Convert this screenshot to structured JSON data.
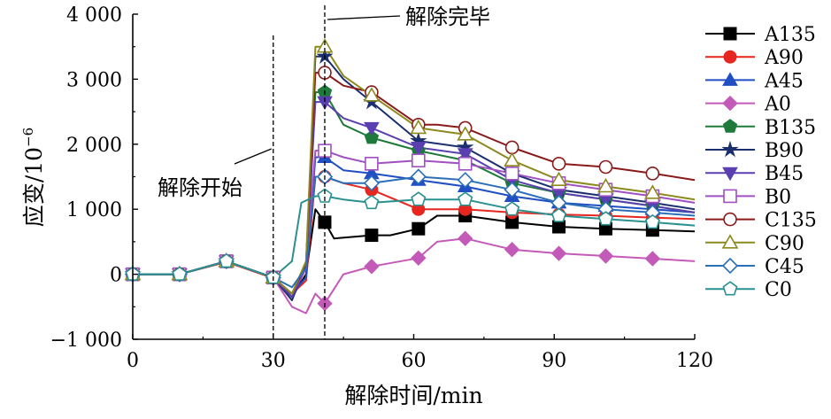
{
  "chart_data": {
    "type": "line",
    "title": "",
    "xlabel": "解除时间/min",
    "ylabel": "应变/10",
    "ylabel_sup": "−6",
    "xlim": [
      0,
      120
    ],
    "ylim": [
      -1000,
      4000
    ],
    "xticks": [
      {
        "v": 0,
        "label": "0"
      },
      {
        "v": 30,
        "label": "30"
      },
      {
        "v": 60,
        "label": "60"
      },
      {
        "v": 90,
        "label": "90"
      },
      {
        "v": 120,
        "label": "120"
      }
    ],
    "yticks": [
      {
        "v": -1000,
        "label": "−1 000"
      },
      {
        "v": 0,
        "label": "0"
      },
      {
        "v": 1000,
        "label": "1 000"
      },
      {
        "v": 2000,
        "label": "2 000"
      },
      {
        "v": 3000,
        "label": "3 000"
      },
      {
        "v": 4000,
        "label": "4 000"
      }
    ],
    "grid": false,
    "legend_position": "right",
    "annotations": [
      {
        "text": "解除开始",
        "x": 30
      },
      {
        "text": "解除完毕",
        "x": 41
      }
    ],
    "series": [
      {
        "name": "A135",
        "color": "#000000",
        "marker": "square",
        "x": [
          0,
          10,
          20,
          30,
          34,
          37,
          39,
          41,
          43,
          51,
          55,
          61,
          65,
          71,
          81,
          91,
          101,
          111,
          120
        ],
        "y": [
          0,
          0,
          200,
          -50,
          -350,
          0,
          1000,
          800,
          550,
          600,
          600,
          700,
          900,
          900,
          800,
          730,
          700,
          680,
          660
        ]
      },
      {
        "name": "A90",
        "color": "#e6261f",
        "marker": "circle",
        "x": [
          0,
          10,
          20,
          30,
          34,
          37,
          39,
          41,
          45,
          51,
          61,
          71,
          81,
          91,
          101,
          111,
          120
        ],
        "y": [
          0,
          0,
          190,
          -60,
          -300,
          -100,
          1500,
          1500,
          1400,
          1300,
          1000,
          1000,
          950,
          920,
          900,
          870,
          850
        ]
      },
      {
        "name": "A45",
        "color": "#1f4fc2",
        "marker": "triangle",
        "x": [
          0,
          10,
          20,
          30,
          34,
          37,
          39,
          41,
          45,
          51,
          61,
          71,
          81,
          91,
          101,
          111,
          120
        ],
        "y": [
          0,
          0,
          200,
          -50,
          -300,
          -50,
          1800,
          1800,
          1600,
          1550,
          1450,
          1350,
          1200,
          1100,
          1050,
          1000,
          950
        ]
      },
      {
        "name": "A0",
        "color": "#c45ab8",
        "marker": "diamond",
        "x": [
          0,
          10,
          20,
          30,
          34,
          37,
          39,
          41,
          45,
          51,
          61,
          65,
          71,
          81,
          91,
          101,
          111,
          120
        ],
        "y": [
          0,
          0,
          200,
          -50,
          -500,
          -600,
          -300,
          -450,
          0,
          120,
          250,
          500,
          550,
          380,
          320,
          280,
          240,
          200
        ]
      },
      {
        "name": "B135",
        "color": "#1e7a3a",
        "marker": "pentagon",
        "x": [
          0,
          10,
          20,
          30,
          34,
          37,
          39,
          41,
          45,
          51,
          61,
          71,
          81,
          91,
          101,
          111,
          120
        ],
        "y": [
          0,
          0,
          200,
          -50,
          -350,
          100,
          2800,
          2800,
          2300,
          2100,
          1900,
          1750,
          1400,
          1250,
          1150,
          1050,
          950
        ]
      },
      {
        "name": "B90",
        "color": "#1b2f6e",
        "marker": "star",
        "x": [
          0,
          10,
          20,
          30,
          34,
          37,
          39,
          41,
          45,
          51,
          61,
          71,
          81,
          91,
          101,
          111,
          120
        ],
        "y": [
          0,
          0,
          200,
          -50,
          -400,
          150,
          3350,
          3350,
          3000,
          2650,
          2050,
          1950,
          1550,
          1300,
          1200,
          1100,
          1000
        ]
      },
      {
        "name": "B45",
        "color": "#5a3fb0",
        "marker": "triangle-down",
        "x": [
          0,
          10,
          20,
          30,
          34,
          37,
          39,
          41,
          45,
          51,
          61,
          71,
          81,
          91,
          101,
          111,
          120
        ],
        "y": [
          0,
          0,
          200,
          -50,
          -350,
          100,
          2650,
          2650,
          2400,
          2250,
          1950,
          1850,
          1450,
          1250,
          1150,
          1050,
          950
        ]
      },
      {
        "name": "B0",
        "color": "#a050c0",
        "marker": "square-open",
        "x": [
          0,
          10,
          20,
          30,
          34,
          37,
          39,
          41,
          45,
          51,
          61,
          71,
          81,
          91,
          101,
          111,
          120
        ],
        "y": [
          0,
          0,
          200,
          -50,
          -300,
          100,
          1900,
          1900,
          1800,
          1700,
          1750,
          1700,
          1550,
          1400,
          1300,
          1200,
          1100
        ]
      },
      {
        "name": "C135",
        "color": "#8a1a1a",
        "marker": "circle-open",
        "x": [
          0,
          10,
          20,
          30,
          34,
          37,
          39,
          41,
          45,
          51,
          61,
          65,
          71,
          81,
          91,
          101,
          111,
          120
        ],
        "y": [
          0,
          0,
          200,
          -50,
          -300,
          150,
          3100,
          3100,
          2900,
          2800,
          2300,
          2300,
          2250,
          1950,
          1700,
          1650,
          1550,
          1450
        ]
      },
      {
        "name": "C90",
        "color": "#8c8a1e",
        "marker": "triangle-open",
        "x": [
          0,
          10,
          20,
          30,
          34,
          37,
          39,
          41,
          45,
          51,
          61,
          71,
          81,
          91,
          101,
          111,
          120
        ],
        "y": [
          0,
          0,
          200,
          -50,
          -300,
          200,
          3500,
          3500,
          3050,
          2750,
          2250,
          2150,
          1750,
          1450,
          1350,
          1250,
          1150
        ]
      },
      {
        "name": "C45",
        "color": "#2a6fb8",
        "marker": "diamond-open",
        "x": [
          0,
          10,
          20,
          30,
          34,
          37,
          39,
          41,
          45,
          51,
          61,
          71,
          81,
          91,
          101,
          111,
          120
        ],
        "y": [
          0,
          0,
          200,
          -50,
          -200,
          100,
          1500,
          1500,
          1400,
          1400,
          1500,
          1450,
          1300,
          1100,
          1000,
          950,
          900
        ]
      },
      {
        "name": "C0",
        "color": "#2a9090",
        "marker": "pentagon-open",
        "x": [
          0,
          10,
          20,
          30,
          34,
          36,
          39,
          41,
          45,
          51,
          61,
          71,
          81,
          91,
          101,
          111,
          120
        ],
        "y": [
          0,
          0,
          200,
          -50,
          200,
          1100,
          1200,
          1200,
          1150,
          1100,
          1150,
          1150,
          1000,
          900,
          850,
          800,
          750
        ]
      }
    ]
  }
}
